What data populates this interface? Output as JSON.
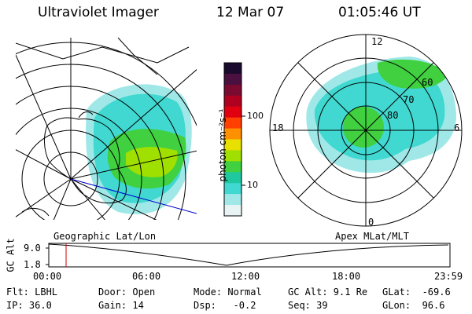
{
  "header": {
    "instrument": "Ultraviolet Imager",
    "date": "12 Mar 07",
    "time": "01:05:46 UT"
  },
  "colorbar": {
    "label": "photon cm⁻²s⁻¹",
    "ticks": [
      "100",
      "10"
    ],
    "colors": [
      "#1a0a2e",
      "#4a1040",
      "#7a0a30",
      "#b00020",
      "#e00010",
      "#ff4000",
      "#ff9000",
      "#e8e000",
      "#a0e000",
      "#40d040",
      "#20c8a0",
      "#40d8d0",
      "#a0e8e8",
      "#e8f4f4"
    ]
  },
  "left_map": {
    "label": "Geographic Lat/Lon"
  },
  "right_map": {
    "label": "Apex MLat/MLT",
    "mlt_labels": [
      "12",
      "18",
      "6",
      "0"
    ],
    "lat_labels": [
      "80",
      "70",
      "60"
    ]
  },
  "timeline": {
    "ylabel": "GC Alt",
    "yticks": [
      "9.0",
      "1.8"
    ],
    "xticks": [
      "00:00",
      "06:00",
      "12:00",
      "18:00",
      "23:59"
    ]
  },
  "status": {
    "flt": "Flt: LBHL",
    "ip": "IP: 36.0",
    "door": "Door: Open",
    "gain": "Gain: 14",
    "mode": "Mode: Normal",
    "dsp": "Dsp:   -0.2",
    "gcalt": "GC Alt: 9.1 Re",
    "seq": "Seq: 39",
    "glat": "GLat:  -69.6",
    "glon": "GLon:  96.6"
  },
  "colors": {
    "aurora_green": "#40d040",
    "aurora_cyan": "#40d8d0",
    "aurora_pale": "#a0e8e8",
    "marker": "#cc0000",
    "nav_line": "#0000cc"
  }
}
